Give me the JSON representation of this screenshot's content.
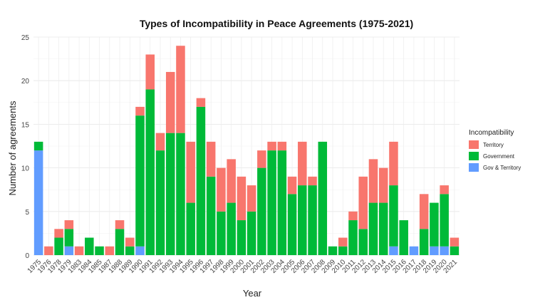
{
  "chart_data": {
    "type": "bar",
    "stacked": true,
    "title": "Types of Incompatibility in Peace Agreements (1975-2021)",
    "xlabel": "Year",
    "ylabel": "Number of agreements",
    "ylim": [
      0,
      25
    ],
    "yticks": [
      0,
      5,
      10,
      15,
      20,
      25
    ],
    "grid": true,
    "legend": {
      "title": "Incompatibility",
      "placement": "right",
      "entries": [
        {
          "name": "Territory",
          "color": "#F8766D"
        },
        {
          "name": "Government",
          "color": "#00BA38"
        },
        {
          "name": "Gov & Territory",
          "color": "#619CFF"
        }
      ]
    },
    "categories": [
      "1975",
      "1976",
      "1978",
      "1979",
      "1983",
      "1984",
      "1985",
      "1987",
      "1988",
      "1989",
      "1990",
      "1991",
      "1992",
      "1993",
      "1994",
      "1995",
      "1996",
      "1997",
      "1998",
      "1999",
      "2000",
      "2001",
      "2002",
      "2003",
      "2004",
      "2005",
      "2006",
      "2007",
      "2008",
      "2009",
      "2010",
      "2011",
      "2012",
      "2013",
      "2014",
      "2015",
      "2016",
      "2017",
      "2018",
      "2019",
      "2020",
      "2021"
    ],
    "series": [
      {
        "name": "Gov & Territory",
        "color": "#619CFF",
        "values": [
          12,
          0,
          0,
          1,
          0,
          0,
          0,
          0,
          0,
          0,
          1,
          0,
          0,
          0,
          0,
          0,
          0,
          0,
          0,
          0,
          0,
          0,
          0,
          0,
          0,
          0,
          0,
          0,
          0,
          0,
          0,
          0,
          0,
          0,
          0,
          1,
          0,
          1,
          0,
          1,
          1,
          0
        ]
      },
      {
        "name": "Government",
        "color": "#00BA38",
        "values": [
          1,
          0,
          2,
          2,
          0,
          2,
          1,
          0,
          3,
          1,
          15,
          19,
          12,
          14,
          14,
          6,
          17,
          9,
          5,
          6,
          4,
          5,
          10,
          12,
          12,
          7,
          8,
          8,
          13,
          1,
          1,
          4,
          3,
          6,
          6,
          7,
          4,
          0,
          3,
          5,
          6,
          1
        ]
      },
      {
        "name": "Territory",
        "color": "#F8766D",
        "values": [
          0,
          1,
          1,
          1,
          1,
          0,
          0,
          1,
          1,
          1,
          1,
          4,
          2,
          7,
          10,
          7,
          1,
          4,
          5,
          5,
          5,
          3,
          2,
          1,
          1,
          2,
          5,
          1,
          0,
          0,
          1,
          1,
          6,
          5,
          4,
          5,
          0,
          0,
          4,
          0,
          1,
          1
        ]
      }
    ]
  }
}
